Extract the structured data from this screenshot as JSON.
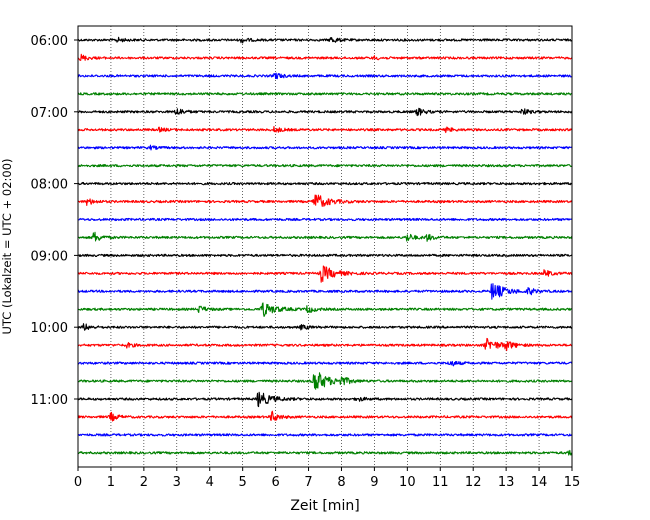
{
  "chart_data": {
    "type": "line",
    "title": "",
    "xlabel": "Zeit  [min]",
    "ylabel": "UTC (Lokalzeit = UTC + 02:00)",
    "xlim": [
      0,
      15
    ],
    "x_ticks": [
      "0",
      "1",
      "2",
      "3",
      "4",
      "5",
      "6",
      "7",
      "8",
      "9",
      "10",
      "11",
      "12",
      "13",
      "14",
      "15"
    ],
    "y_ticks": [
      {
        "label": "06:00",
        "row": 0
      },
      {
        "label": "07:00",
        "row": 4
      },
      {
        "label": "08:00",
        "row": 8
      },
      {
        "label": "09:00",
        "row": 12
      },
      {
        "label": "10:00",
        "row": 16
      },
      {
        "label": "11:00",
        "row": 20
      }
    ],
    "grid": {
      "vertical": true,
      "style": "dotted"
    },
    "row_interval_minutes": 15,
    "row_colors": [
      "#000000",
      "#ff0000",
      "#0000ff",
      "#008000"
    ],
    "traces": [
      {
        "start": "06:00",
        "color": "#000000",
        "events": [
          {
            "t": 1.2,
            "amp": 2
          },
          {
            "t": 5.0,
            "amp": 2
          },
          {
            "t": 7.7,
            "amp": 3
          }
        ]
      },
      {
        "start": "06:15",
        "color": "#ff0000",
        "events": [
          {
            "t": 0.1,
            "amp": 3
          },
          {
            "t": 9.0,
            "amp": 1.5
          }
        ]
      },
      {
        "start": "06:30",
        "color": "#0000ff",
        "events": [
          {
            "t": 6.0,
            "amp": 3
          }
        ]
      },
      {
        "start": "06:45",
        "color": "#008000",
        "events": []
      },
      {
        "start": "07:00",
        "color": "#000000",
        "events": [
          {
            "t": 3.0,
            "amp": 4
          },
          {
            "t": 10.3,
            "amp": 4
          },
          {
            "t": 13.5,
            "amp": 3
          }
        ]
      },
      {
        "start": "07:15",
        "color": "#ff0000",
        "events": [
          {
            "t": 2.5,
            "amp": 1.5
          },
          {
            "t": 6.0,
            "amp": 2.5
          },
          {
            "t": 11.2,
            "amp": 2
          }
        ]
      },
      {
        "start": "07:30",
        "color": "#0000ff",
        "events": [
          {
            "t": 2.2,
            "amp": 1.5
          }
        ]
      },
      {
        "start": "07:45",
        "color": "#008000",
        "events": []
      },
      {
        "start": "08:00",
        "color": "#000000",
        "events": []
      },
      {
        "start": "08:15",
        "color": "#ff0000",
        "events": [
          {
            "t": 0.3,
            "amp": 3
          },
          {
            "t": 7.2,
            "amp": 8
          }
        ]
      },
      {
        "start": "08:30",
        "color": "#0000ff",
        "events": []
      },
      {
        "start": "08:45",
        "color": "#008000",
        "events": [
          {
            "t": 0.5,
            "amp": 5
          },
          {
            "t": 10.0,
            "amp": 4
          },
          {
            "t": 10.6,
            "amp": 3
          }
        ]
      },
      {
        "start": "09:00",
        "color": "#000000",
        "events": []
      },
      {
        "start": "09:15",
        "color": "#ff0000",
        "events": [
          {
            "t": 7.4,
            "amp": 8
          },
          {
            "t": 14.2,
            "amp": 3
          }
        ]
      },
      {
        "start": "09:30",
        "color": "#0000ff",
        "events": [
          {
            "t": 12.6,
            "amp": 8
          },
          {
            "t": 13.7,
            "amp": 3
          }
        ]
      },
      {
        "start": "09:45",
        "color": "#008000",
        "events": [
          {
            "t": 3.7,
            "amp": 3
          },
          {
            "t": 5.6,
            "amp": 7
          },
          {
            "t": 7.0,
            "amp": 3
          }
        ]
      },
      {
        "start": "10:00",
        "color": "#000000",
        "events": [
          {
            "t": 0.2,
            "amp": 3
          },
          {
            "t": 6.8,
            "amp": 2
          }
        ]
      },
      {
        "start": "10:15",
        "color": "#ff0000",
        "events": [
          {
            "t": 1.5,
            "amp": 2
          },
          {
            "t": 12.4,
            "amp": 6
          },
          {
            "t": 13.0,
            "amp": 4
          }
        ]
      },
      {
        "start": "10:30",
        "color": "#0000ff",
        "events": [
          {
            "t": 11.3,
            "amp": 3
          }
        ]
      },
      {
        "start": "10:45",
        "color": "#008000",
        "events": [
          {
            "t": 7.2,
            "amp": 11
          },
          {
            "t": 8.0,
            "amp": 4
          }
        ]
      },
      {
        "start": "11:00",
        "color": "#000000",
        "events": [
          {
            "t": 5.5,
            "amp": 7
          },
          {
            "t": 8.5,
            "amp": 2
          }
        ]
      },
      {
        "start": "11:15",
        "color": "#ff0000",
        "events": [
          {
            "t": 1.0,
            "amp": 4
          },
          {
            "t": 5.9,
            "amp": 5
          }
        ]
      },
      {
        "start": "11:30",
        "color": "#0000ff",
        "events": []
      },
      {
        "start": "11:45",
        "color": "#008000",
        "events": [
          {
            "t": 14.9,
            "amp": 2
          }
        ]
      }
    ]
  }
}
